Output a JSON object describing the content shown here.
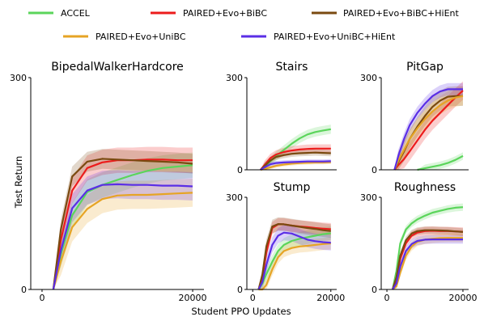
{
  "figure": {
    "xlabel": "Student PPO Updates",
    "ylabel": "Test Return"
  },
  "legend": [
    {
      "name": "ACCEL",
      "color": "#5bd55b"
    },
    {
      "name": "PAIRED+Evo+BiBC",
      "color": "#ec1c1c"
    },
    {
      "name": "PAIRED+Evo+BiBC+HiEnt",
      "color": "#7a4a10"
    },
    {
      "name": "PAIRED+Evo+UniBC",
      "color": "#e6a425"
    },
    {
      "name": "PAIRED+Evo+UniBC+HiEnt",
      "color": "#5a2ee6"
    }
  ],
  "chart_data": [
    {
      "type": "line",
      "title": "BipedalWalkerHardcore",
      "xticks": [
        "0",
        "20000"
      ],
      "yticks": [
        "0",
        "300"
      ],
      "xlim": [
        -1500,
        21500
      ],
      "ylim": [
        0,
        300
      ],
      "x": [
        1500,
        2500,
        4000,
        6000,
        8000,
        10000,
        12000,
        14000,
        16000,
        18000,
        20000
      ],
      "series": [
        {
          "name": "ACCEL",
          "values": [
            0,
            50,
            105,
            138,
            148,
            155,
            162,
            168,
            172,
            174,
            176
          ],
          "band": 18
        },
        {
          "name": "PAIRED+Evo+BiBC",
          "values": [
            0,
            70,
            140,
            172,
            180,
            183,
            183,
            184,
            184,
            183,
            183
          ],
          "band": 18
        },
        {
          "name": "PAIRED+Evo+BiBC+HiEnt",
          "values": [
            0,
            85,
            160,
            181,
            185,
            184,
            183,
            182,
            181,
            180,
            178
          ],
          "band": 14
        },
        {
          "name": "PAIRED+Evo+UniBC",
          "values": [
            0,
            40,
            88,
            114,
            128,
            133,
            134,
            134,
            135,
            136,
            137
          ],
          "band": 20
        },
        {
          "name": "PAIRED+Evo+UniBC+HiEnt",
          "values": [
            0,
            55,
            115,
            140,
            148,
            149,
            148,
            148,
            147,
            147,
            146
          ],
          "band": 20
        }
      ]
    },
    {
      "type": "line",
      "title": "Stairs",
      "xticks": [],
      "yticks": [
        "0",
        "300"
      ],
      "xlim": [
        -1500,
        21500
      ],
      "ylim": [
        0,
        300
      ],
      "x": [
        2000,
        3000,
        4500,
        6000,
        8000,
        10000,
        12000,
        14000,
        16000,
        18000,
        20000
      ],
      "series": [
        {
          "name": "ACCEL",
          "values": [
            0,
            8,
            28,
            45,
            65,
            85,
            102,
            115,
            123,
            128,
            132
          ],
          "band": 15
        },
        {
          "name": "PAIRED+Evo+BiBC",
          "values": [
            0,
            15,
            38,
            50,
            58,
            63,
            66,
            68,
            69,
            69,
            69
          ],
          "band": 14
        },
        {
          "name": "PAIRED+Evo+BiBC+HiEnt",
          "values": [
            0,
            12,
            30,
            42,
            48,
            52,
            54,
            55,
            56,
            55,
            54
          ],
          "band": 10
        },
        {
          "name": "PAIRED+Evo+UniBC",
          "values": [
            0,
            3,
            8,
            13,
            17,
            20,
            22,
            23,
            24,
            24,
            25
          ],
          "band": 6
        },
        {
          "name": "PAIRED+Evo+UniBC+HiEnt",
          "values": [
            0,
            8,
            18,
            22,
            24,
            25,
            26,
            27,
            27,
            27,
            28
          ],
          "band": 7
        }
      ]
    },
    {
      "type": "line",
      "title": "PitGap",
      "xticks": [],
      "yticks": [
        "0",
        "300"
      ],
      "xlim": [
        -1500,
        21500
      ],
      "ylim": [
        0,
        300
      ],
      "x": [
        2000,
        3000,
        4500,
        6000,
        8000,
        10000,
        12000,
        14000,
        16000,
        18000,
        20000
      ],
      "series": [
        {
          "name": "ACCEL",
          "values": [
            null,
            null,
            null,
            null,
            0,
            5,
            10,
            15,
            22,
            32,
            45
          ],
          "band": 12
        },
        {
          "name": "PAIRED+Evo+BiBC",
          "values": [
            0,
            15,
            35,
            60,
            95,
            130,
            160,
            185,
            210,
            235,
            258
          ],
          "band": 30
        },
        {
          "name": "PAIRED+Evo+BiBC+HiEnt",
          "values": [
            0,
            25,
            60,
            100,
            140,
            175,
            205,
            225,
            238,
            240,
            240
          ],
          "band": 32
        },
        {
          "name": "PAIRED+Evo+UniBC",
          "values": [
            0,
            30,
            65,
            100,
            135,
            165,
            190,
            210,
            225,
            235,
            240
          ],
          "band": 30
        },
        {
          "name": "PAIRED+Evo+UniBC+HiEnt",
          "values": [
            0,
            45,
            100,
            145,
            185,
            215,
            240,
            255,
            262,
            262,
            262
          ],
          "band": 20
        }
      ]
    },
    {
      "type": "line",
      "title": "Stump",
      "xticks": [
        "0",
        "20000"
      ],
      "yticks": [
        "0",
        "300"
      ],
      "xlim": [
        -1500,
        21500
      ],
      "ylim": [
        0,
        300
      ],
      "x": [
        1500,
        2500,
        3500,
        5000,
        6500,
        8000,
        10000,
        12000,
        14000,
        16000,
        18000,
        20000
      ],
      "series": [
        {
          "name": "ACCEL",
          "values": [
            0,
            20,
            50,
            90,
            125,
            145,
            158,
            165,
            170,
            175,
            180,
            183
          ],
          "band": 22
        },
        {
          "name": "PAIRED+Evo+BiBC",
          "values": [
            0,
            40,
            120,
            200,
            212,
            212,
            208,
            205,
            203,
            200,
            198,
            196
          ],
          "band": 20
        },
        {
          "name": "PAIRED+Evo+BiBC+HiEnt",
          "values": [
            0,
            50,
            140,
            205,
            213,
            212,
            208,
            204,
            200,
            197,
            193,
            190
          ],
          "band": 22
        },
        {
          "name": "PAIRED+Evo+UniBC",
          "values": [
            0,
            0,
            15,
            65,
            105,
            125,
            135,
            140,
            142,
            145,
            148,
            150
          ],
          "band": 20
        },
        {
          "name": "PAIRED+Evo+UniBC+HiEnt",
          "values": [
            0,
            25,
            80,
            145,
            175,
            185,
            182,
            172,
            162,
            157,
            154,
            152
          ],
          "band": 25
        }
      ]
    },
    {
      "type": "line",
      "title": "Roughness",
      "xticks": [
        "0",
        "20000"
      ],
      "yticks": [
        "0",
        "300"
      ],
      "xlim": [
        -1500,
        21500
      ],
      "ylim": [
        0,
        300
      ],
      "x": [
        1500,
        2500,
        3500,
        5000,
        6500,
        8000,
        10000,
        12000,
        14000,
        16000,
        18000,
        20000
      ],
      "series": [
        {
          "name": "ACCEL",
          "values": [
            0,
            60,
            150,
            195,
            215,
            228,
            240,
            250,
            256,
            262,
            266,
            268
          ],
          "band": 12
        },
        {
          "name": "PAIRED+Evo+BiBC",
          "values": [
            0,
            35,
            100,
            150,
            175,
            185,
            190,
            191,
            190,
            190,
            189,
            188
          ],
          "band": 14
        },
        {
          "name": "PAIRED+Evo+BiBC+HiEnt",
          "values": [
            0,
            40,
            110,
            160,
            182,
            190,
            193,
            193,
            192,
            191,
            189,
            187
          ],
          "band": 12
        },
        {
          "name": "PAIRED+Evo+UniBC",
          "values": [
            0,
            10,
            55,
            110,
            140,
            155,
            162,
            165,
            167,
            168,
            168,
            168
          ],
          "band": 14
        },
        {
          "name": "PAIRED+Evo+UniBC+HiEnt",
          "values": [
            0,
            20,
            75,
            125,
            148,
            158,
            162,
            163,
            163,
            163,
            163,
            163
          ],
          "band": 14
        }
      ]
    }
  ]
}
